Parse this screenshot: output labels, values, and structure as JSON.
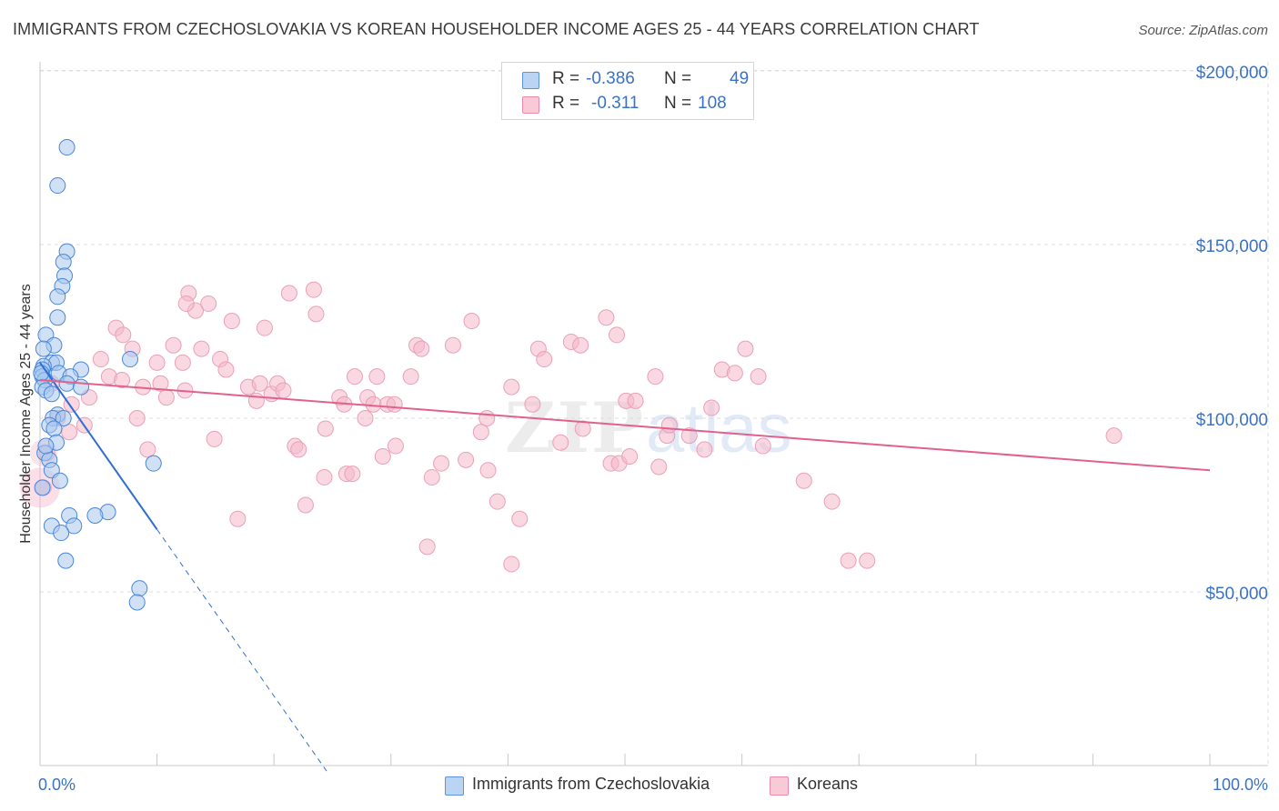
{
  "title": "IMMIGRANTS FROM CZECHOSLOVAKIA VS KOREAN HOUSEHOLDER INCOME AGES 25 - 44 YEARS CORRELATION CHART",
  "source": "Source: ZipAtlas.com",
  "watermark": "ZIPatlas",
  "colors": {
    "blue": "#4a86d8",
    "blue_fill": "#aac8ef",
    "blue_line": "#2f6fd1",
    "pink": "#e3658f",
    "pink_fill": "#f4b8cb",
    "pink_line": "#e0628c",
    "axis_label": "#3b72c4",
    "grid": "#dcdcdc"
  },
  "legend": {
    "rows": [
      {
        "r_label": "R =",
        "r_value": "-0.386",
        "n_label": "N =",
        "n_value": "49"
      },
      {
        "r_label": "R =",
        "r_value": "-0.311",
        "n_label": "N =",
        "n_value": "108"
      }
    ]
  },
  "bottom_legend": {
    "series1": "Immigrants from Czechoslovakia",
    "series2": "Koreans"
  },
  "chart_data": {
    "type": "scatter",
    "xlabel_left": "0.0%",
    "xlabel_right": "100.0%",
    "ylabel": "Householder Income Ages 25 - 44 years",
    "xlim": [
      0,
      100
    ],
    "ylim": [
      0,
      210000
    ],
    "yticks": [
      {
        "value": 50000,
        "label": "$50,000"
      },
      {
        "value": 100000,
        "label": "$100,000"
      },
      {
        "value": 150000,
        "label": "$150,000"
      },
      {
        "value": 200000,
        "label": "$200,000"
      }
    ],
    "series": [
      {
        "name": "Immigrants from Czechoslovakia",
        "color": "blue",
        "trend": {
          "x0": 0,
          "y0": 116000,
          "x1": 10,
          "y1": 68000,
          "dash_to_x": 24.5
        },
        "points": [
          [
            2.3,
            178000
          ],
          [
            1.5,
            167000
          ],
          [
            2.3,
            148000
          ],
          [
            2.0,
            145000
          ],
          [
            2.1,
            141000
          ],
          [
            1.9,
            138000
          ],
          [
            1.5,
            135000
          ],
          [
            1.5,
            129000
          ],
          [
            0.5,
            124000
          ],
          [
            1.2,
            121000
          ],
          [
            0.3,
            120000
          ],
          [
            7.7,
            117000
          ],
          [
            1.0,
            116000
          ],
          [
            1.4,
            116000
          ],
          [
            0.3,
            115000
          ],
          [
            0.2,
            114000
          ],
          [
            3.5,
            114000
          ],
          [
            1.6,
            113000
          ],
          [
            2.6,
            112000
          ],
          [
            0.2,
            112000
          ],
          [
            0.4,
            111000
          ],
          [
            2.3,
            110000
          ],
          [
            3.5,
            109000
          ],
          [
            0.2,
            109000
          ],
          [
            0.5,
            108000
          ],
          [
            1.0,
            107000
          ],
          [
            1.5,
            101000
          ],
          [
            1.1,
            100000
          ],
          [
            2.0,
            100000
          ],
          [
            0.8,
            98000
          ],
          [
            1.2,
            97000
          ],
          [
            1.4,
            93000
          ],
          [
            0.4,
            90000
          ],
          [
            0.8,
            88000
          ],
          [
            9.7,
            87000
          ],
          [
            1.0,
            85000
          ],
          [
            1.7,
            82000
          ],
          [
            0.2,
            80000
          ],
          [
            5.8,
            73000
          ],
          [
            4.7,
            72000
          ],
          [
            2.5,
            72000
          ],
          [
            1.0,
            69000
          ],
          [
            2.9,
            69000
          ],
          [
            1.8,
            67000
          ],
          [
            2.2,
            59000
          ],
          [
            8.5,
            51000
          ],
          [
            8.3,
            47000
          ],
          [
            0.5,
            92000
          ],
          [
            0.1,
            113000
          ]
        ]
      },
      {
        "name": "Koreans",
        "color": "pink",
        "trend": {
          "x0": 0,
          "y0": 111000,
          "x1": 100,
          "y1": 85000
        },
        "points": [
          [
            0.3,
            80000
          ],
          [
            0.6,
            90000
          ],
          [
            1.5,
            100000
          ],
          [
            2.7,
            104000
          ],
          [
            3.8,
            98000
          ],
          [
            4.2,
            106000
          ],
          [
            5.2,
            117000
          ],
          [
            5.9,
            112000
          ],
          [
            6.5,
            126000
          ],
          [
            7.0,
            111000
          ],
          [
            7.1,
            124000
          ],
          [
            7.9,
            120000
          ],
          [
            8.3,
            100000
          ],
          [
            8.8,
            109000
          ],
          [
            9.2,
            91000
          ],
          [
            10.0,
            116000
          ],
          [
            10.3,
            110000
          ],
          [
            10.8,
            106000
          ],
          [
            11.4,
            121000
          ],
          [
            12.2,
            116000
          ],
          [
            12.4,
            108000
          ],
          [
            12.7,
            136000
          ],
          [
            13.3,
            131000
          ],
          [
            13.8,
            120000
          ],
          [
            14.4,
            133000
          ],
          [
            14.9,
            94000
          ],
          [
            15.4,
            117000
          ],
          [
            15.9,
            114000
          ],
          [
            16.4,
            128000
          ],
          [
            16.9,
            71000
          ],
          [
            17.8,
            109000
          ],
          [
            18.5,
            105000
          ],
          [
            18.8,
            110000
          ],
          [
            19.2,
            126000
          ],
          [
            19.8,
            107000
          ],
          [
            20.3,
            110000
          ],
          [
            20.8,
            108000
          ],
          [
            21.3,
            136000
          ],
          [
            21.8,
            92000
          ],
          [
            22.1,
            91000
          ],
          [
            22.7,
            75000
          ],
          [
            23.4,
            137000
          ],
          [
            23.6,
            130000
          ],
          [
            24.3,
            83000
          ],
          [
            24.4,
            97000
          ],
          [
            25.6,
            106000
          ],
          [
            26.0,
            104000
          ],
          [
            26.2,
            84000
          ],
          [
            26.7,
            84000
          ],
          [
            26.9,
            112000
          ],
          [
            27.8,
            100000
          ],
          [
            28.0,
            106000
          ],
          [
            28.5,
            104000
          ],
          [
            28.8,
            112000
          ],
          [
            29.3,
            89000
          ],
          [
            29.7,
            104000
          ],
          [
            30.3,
            104000
          ],
          [
            30.4,
            92000
          ],
          [
            31.7,
            112000
          ],
          [
            32.2,
            121000
          ],
          [
            32.6,
            120000
          ],
          [
            33.1,
            63000
          ],
          [
            33.5,
            83000
          ],
          [
            34.3,
            87000
          ],
          [
            35.3,
            121000
          ],
          [
            36.4,
            88000
          ],
          [
            36.9,
            128000
          ],
          [
            37.7,
            96000
          ],
          [
            38.2,
            100000
          ],
          [
            38.3,
            85000
          ],
          [
            39.1,
            76000
          ],
          [
            40.3,
            109000
          ],
          [
            40.3,
            58000
          ],
          [
            41.0,
            71000
          ],
          [
            42.1,
            104000
          ],
          [
            42.6,
            120000
          ],
          [
            43.1,
            117000
          ],
          [
            44.5,
            93000
          ],
          [
            45.4,
            122000
          ],
          [
            46.2,
            121000
          ],
          [
            46.4,
            97000
          ],
          [
            48.4,
            129000
          ],
          [
            48.8,
            87000
          ],
          [
            49.3,
            124000
          ],
          [
            49.5,
            87000
          ],
          [
            50.1,
            105000
          ],
          [
            50.4,
            89000
          ],
          [
            50.9,
            105000
          ],
          [
            52.6,
            112000
          ],
          [
            52.9,
            86000
          ],
          [
            53.6,
            95000
          ],
          [
            53.8,
            98000
          ],
          [
            55.5,
            95000
          ],
          [
            56.8,
            91000
          ],
          [
            57.4,
            103000
          ],
          [
            58.3,
            114000
          ],
          [
            59.4,
            113000
          ],
          [
            60.3,
            120000
          ],
          [
            61.4,
            112000
          ],
          [
            61.8,
            92000
          ],
          [
            65.3,
            82000
          ],
          [
            67.7,
            76000
          ],
          [
            69.1,
            59000
          ],
          [
            70.7,
            59000
          ],
          [
            91.8,
            95000
          ],
          [
            1.0,
            110000
          ],
          [
            12.5,
            133000
          ],
          [
            2.5,
            96000
          ]
        ]
      }
    ]
  }
}
